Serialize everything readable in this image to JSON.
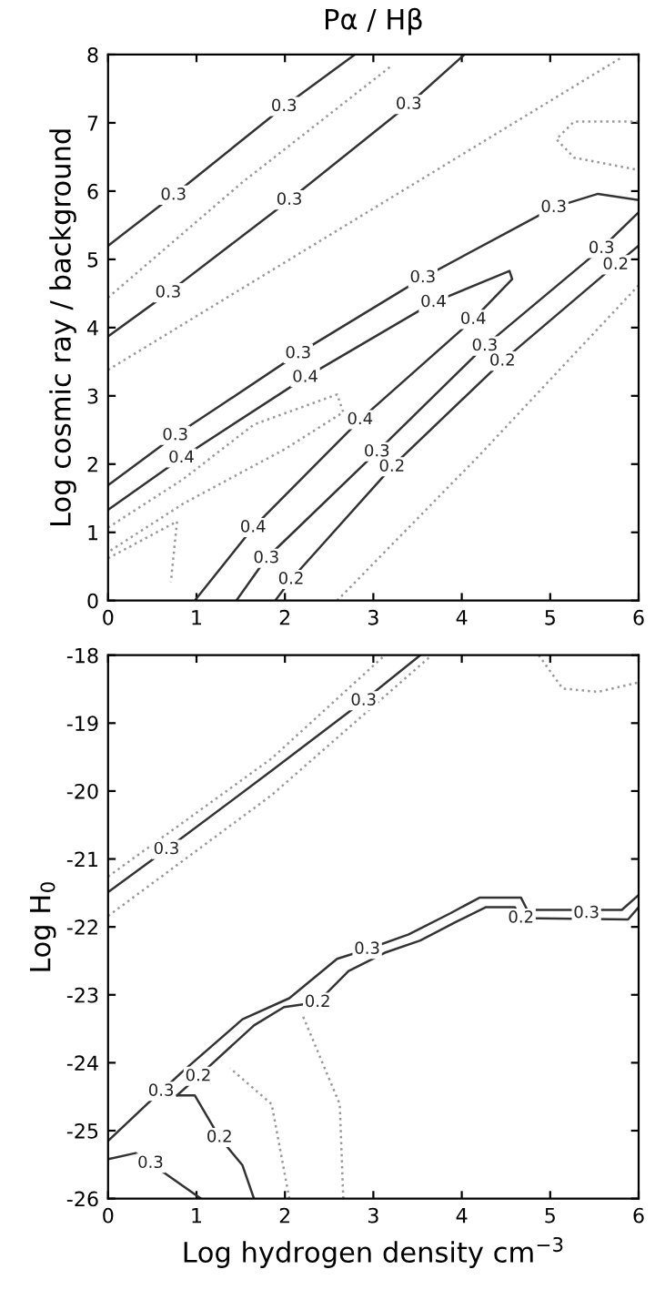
{
  "chart_data": [
    {
      "type": "line",
      "title": "Pα / Hβ",
      "ylabel": "Log cosmic ray / background",
      "xlim": [
        0,
        6
      ],
      "ylim": [
        0,
        8
      ],
      "xticks": [
        0,
        1,
        2,
        3,
        4,
        5,
        6
      ],
      "yticks": [
        0,
        1,
        2,
        3,
        4,
        5,
        6,
        7,
        8
      ],
      "grid": false,
      "legend": false,
      "series": [
        {
          "color": "#333333",
          "line_style": "solid",
          "x": [
            0,
            0.74,
            1.99,
            2.79
          ],
          "values": [
            5.2,
            5.94,
            7.24,
            8
          ]
        },
        {
          "color": "#333333",
          "line_style": "solid",
          "x": [
            0,
            0.68,
            2.05,
            3.4,
            4.03
          ],
          "values": [
            3.87,
            4.51,
            5.87,
            7.27,
            8
          ]
        },
        {
          "color": "#333333",
          "line_style": "solid",
          "x": [
            0,
            0.76,
            1.25,
            2.15,
            3.56,
            5.04,
            5.54,
            6
          ],
          "values": [
            1.69,
            2.42,
            2.84,
            3.62,
            4.73,
            5.76,
            5.96,
            5.87
          ]
        },
        {
          "color": "#333333",
          "line_style": "solid",
          "x": [
            0,
            0.83,
            2.23,
            3.68,
            4.54,
            4.57,
            4.13,
            2.85,
            1.64,
            0.98
          ],
          "values": [
            1.33,
            2.09,
            3.27,
            4.37,
            4.83,
            4.71,
            4.12,
            2.65,
            1.07,
            0
          ]
        },
        {
          "color": "#333333",
          "line_style": "solid",
          "x": [
            1.45,
            1.79,
            3.04,
            4.26,
            5.58,
            6
          ],
          "values": [
            0,
            0.62,
            2.18,
            3.73,
            5.16,
            5.69
          ]
        },
        {
          "color": "#333333",
          "line_style": "solid",
          "x": [
            1.89,
            2.07,
            3.21,
            4.46,
            5.74,
            6
          ],
          "values": [
            0,
            0.31,
            1.96,
            3.51,
            4.92,
            5.2
          ]
        },
        {
          "color": "#999999",
          "line_style": "dotted",
          "x": [
            0,
            5.81
          ],
          "values": [
            3.38,
            7.96
          ]
        },
        {
          "color": "#999999",
          "line_style": "dotted",
          "x": [
            0,
            1.52,
            3.19
          ],
          "values": [
            4.44,
            6.13,
            7.82
          ]
        },
        {
          "color": "#999999",
          "line_style": "dotted",
          "x": [
            6,
            5.27,
            5.07,
            5.27,
            6
          ],
          "values": [
            7.02,
            7.02,
            6.76,
            6.49,
            6.31
          ]
        },
        {
          "color": "#999999",
          "line_style": "dotted",
          "x": [
            0,
            0.85,
            1.65,
            2.59,
            2.66,
            2.0,
            0.85,
            0
          ],
          "values": [
            1.07,
            1.78,
            2.58,
            3.02,
            2.76,
            2.22,
            1.42,
            0.71
          ]
        },
        {
          "color": "#999999",
          "line_style": "dotted",
          "x": [
            0,
            0.78,
            0.71
          ],
          "values": [
            0.62,
            1.16,
            0.27
          ]
        },
        {
          "color": "#999999",
          "line_style": "dotted",
          "x": [
            2.59,
            4.2,
            6
          ],
          "values": [
            0,
            2.13,
            4.62
          ]
        }
      ],
      "annotations": [
        {
          "text": "0.3",
          "x": 1.99,
          "y": 7.24
        },
        {
          "text": "0.3",
          "x": 3.4,
          "y": 7.27
        },
        {
          "text": "0.3",
          "x": 0.74,
          "y": 5.94
        },
        {
          "text": "0.3",
          "x": 2.05,
          "y": 5.87
        },
        {
          "text": "0.3",
          "x": 0.68,
          "y": 4.51
        },
        {
          "text": "0.3",
          "x": 5.04,
          "y": 5.76
        },
        {
          "text": "0.3",
          "x": 3.56,
          "y": 4.73
        },
        {
          "text": "0.4",
          "x": 3.68,
          "y": 4.37
        },
        {
          "text": "0.3",
          "x": 2.15,
          "y": 3.62
        },
        {
          "text": "0.4",
          "x": 2.23,
          "y": 3.27
        },
        {
          "text": "0.3",
          "x": 0.76,
          "y": 2.42
        },
        {
          "text": "0.4",
          "x": 0.83,
          "y": 2.09
        },
        {
          "text": "0.4",
          "x": 4.13,
          "y": 4.12
        },
        {
          "text": "0.3",
          "x": 4.26,
          "y": 3.73
        },
        {
          "text": "0.2",
          "x": 4.46,
          "y": 3.51
        },
        {
          "text": "0.3",
          "x": 5.58,
          "y": 5.16
        },
        {
          "text": "0.2",
          "x": 5.74,
          "y": 4.92
        },
        {
          "text": "0.4",
          "x": 2.85,
          "y": 2.65
        },
        {
          "text": "0.3",
          "x": 3.04,
          "y": 2.18
        },
        {
          "text": "0.2",
          "x": 3.21,
          "y": 1.96
        },
        {
          "text": "0.4",
          "x": 1.64,
          "y": 1.07
        },
        {
          "text": "0.3",
          "x": 1.79,
          "y": 0.62
        },
        {
          "text": "0.2",
          "x": 2.07,
          "y": 0.31
        }
      ]
    },
    {
      "type": "line",
      "xlabel": "Log hydrogen density cm$^{−3}$",
      "ylabel": "Log H$_{0}$",
      "xlim": [
        0,
        6
      ],
      "ylim": [
        -26,
        -18
      ],
      "xticks": [
        0,
        1,
        2,
        3,
        4,
        5,
        6
      ],
      "yticks": [
        -26,
        -25,
        -24,
        -23,
        -22,
        -21,
        -20,
        -19,
        -18
      ],
      "grid": false,
      "legend": false,
      "series": [
        {
          "color": "#333333",
          "line_style": "solid",
          "x": [
            0,
            0.66,
            1.85,
            2.89,
            3.53
          ],
          "values": [
            -21.49,
            -20.86,
            -19.7,
            -18.67,
            -18
          ]
        },
        {
          "color": "#333333",
          "line_style": "solid",
          "x": [
            0,
            0.44,
            0.6,
            0.85,
            1.52,
            2.05,
            2.59,
            2.93,
            3.4,
            3.87,
            4.2,
            4.67,
            4.74,
            5.81,
            6
          ],
          "values": [
            -25.15,
            -24.61,
            -24.42,
            -24.12,
            -23.36,
            -23.05,
            -22.47,
            -22.33,
            -22.11,
            -21.8,
            -21.57,
            -21.57,
            -21.75,
            -21.75,
            -21.53
          ]
        },
        {
          "color": "#333333",
          "line_style": "solid",
          "x": [
            0.78,
            1.02,
            1.65,
            1.99,
            2.37,
            2.72,
            3.13,
            3.53,
            3.93,
            4.27,
            4.6,
            4.67,
            5.88,
            6
          ],
          "values": [
            -24.48,
            -24.2,
            -23.45,
            -23.18,
            -23.11,
            -22.65,
            -22.38,
            -22.2,
            -21.93,
            -21.71,
            -21.71,
            -21.87,
            -21.89,
            -21.71
          ]
        },
        {
          "color": "#333333",
          "line_style": "solid",
          "x": [
            0.78,
            0.98,
            1.26,
            1.52,
            1.65
          ],
          "values": [
            -24.48,
            -24.48,
            -25.1,
            -25.51,
            -26
          ]
        },
        {
          "color": "#333333",
          "line_style": "solid",
          "x": [
            0,
            0.31,
            0.48,
            1.05
          ],
          "values": [
            -25.42,
            -25.33,
            -25.48,
            -26
          ]
        },
        {
          "color": "#999999",
          "line_style": "dotted",
          "x": [
            0,
            1.85,
            3.13
          ],
          "values": [
            -21.26,
            -19.52,
            -18
          ]
        },
        {
          "color": "#999999",
          "line_style": "dotted",
          "x": [
            0,
            1.85,
            3.66
          ],
          "values": [
            -21.84,
            -20.06,
            -18
          ]
        },
        {
          "color": "#999999",
          "line_style": "dotted",
          "x": [
            2.66,
            2.62,
            2.19
          ],
          "values": [
            -26,
            -24.61,
            -23.27
          ]
        },
        {
          "color": "#999999",
          "line_style": "dotted",
          "x": [
            2.05,
            1.85,
            1.38
          ],
          "values": [
            -26,
            -24.61,
            -24.08
          ]
        },
        {
          "color": "#999999",
          "line_style": "dotted",
          "x": [
            4.87,
            5.14,
            5.54,
            6
          ],
          "values": [
            -18,
            -18.49,
            -18.54,
            -18.4
          ]
        }
      ],
      "annotations": [
        {
          "text": "0.3",
          "x": 2.89,
          "y": -18.67
        },
        {
          "text": "0.3",
          "x": 0.66,
          "y": -20.86
        },
        {
          "text": "0.2",
          "x": 4.67,
          "y": -21.87
        },
        {
          "text": "0.3",
          "x": 5.41,
          "y": -21.8
        },
        {
          "text": "0.3",
          "x": 2.93,
          "y": -22.33
        },
        {
          "text": "0.2",
          "x": 2.37,
          "y": -23.11
        },
        {
          "text": "0.3",
          "x": 0.6,
          "y": -24.42
        },
        {
          "text": "0.2",
          "x": 1.02,
          "y": -24.2
        },
        {
          "text": "0.2",
          "x": 1.26,
          "y": -25.1
        },
        {
          "text": "0.3",
          "x": 0.48,
          "y": -25.48
        }
      ]
    }
  ]
}
